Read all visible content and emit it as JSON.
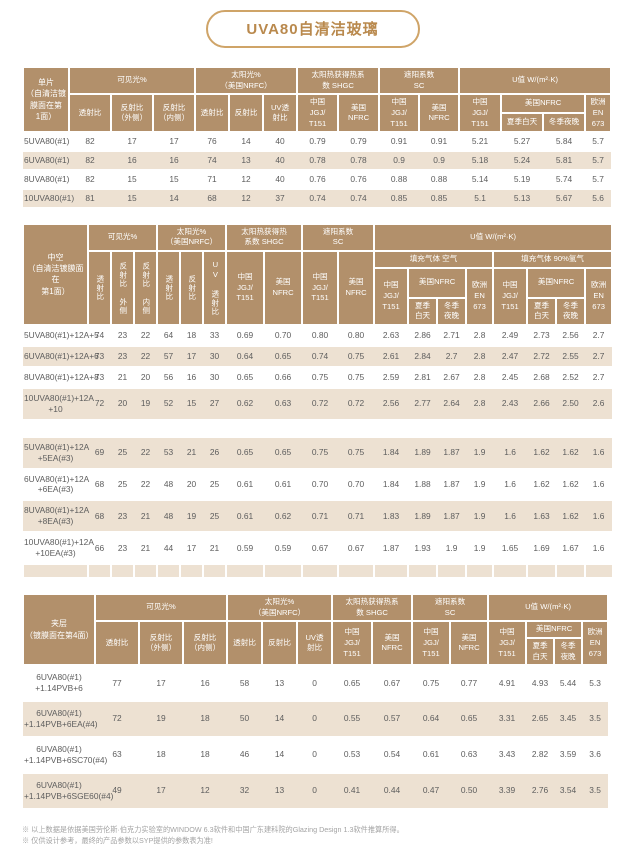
{
  "title": "UVA80自清洁玻璃",
  "colors": {
    "header_bg": "#b2906b",
    "row_alt_bg": "#ede1d2",
    "accent_gold": "#cfa468",
    "title_text": "#b9894d",
    "body_text": "#5d5d5d"
  },
  "labels": {
    "visible": "可见光%",
    "solar": "太阳光%\n（美国NRFC）",
    "shgc": "太阳热获得热系\n数 SHGC",
    "shgc2": "太阳热获得热\n系数 SHGC",
    "sc": "遮阳系数\nSC",
    "uvalue": "U值 W/(m²·K)",
    "trans": "透射比",
    "refl_out": "反射比\n（外侧）",
    "refl_in": "反射比\n（内侧）",
    "srefl": "反射比",
    "uv": "UV透\n射比",
    "trans_vert": "透射比",
    "refl_out_vert": "反射比 外侧",
    "refl_in_vert": "反射比 内侧",
    "srefl_vert": "反射比",
    "uv_vert": "UV 透射比",
    "cn": "中国\nJGJ/\nT151",
    "us": "美国\nNFRC",
    "us_nfrc": "美国NFRC",
    "eu": "欧洲\nEN\n673",
    "summer": "夏季白天",
    "winter": "冬季夜晚",
    "summer2": "夏季\n白天",
    "winter2": "冬季\n夜晚",
    "fill_air": "填充气体 空气",
    "fill_argon": "填充气体 90%氩气"
  },
  "table_mono": {
    "corner": "单片\n（自清洁镀\n膜面在第\n1面）",
    "rows": [
      {
        "label": "5UVA80(#1)",
        "values": [
          "82",
          "17",
          "17",
          "76",
          "14",
          "40",
          "0.79",
          "0.79",
          "0.91",
          "0.91",
          "5.21",
          "5.27",
          "5.84",
          "5.7"
        ]
      },
      {
        "label": "6UVA80(#1)",
        "values": [
          "82",
          "16",
          "16",
          "74",
          "13",
          "40",
          "0.78",
          "0.78",
          "0.9",
          "0.9",
          "5.18",
          "5.24",
          "5.81",
          "5.7"
        ]
      },
      {
        "label": "8UVA80(#1)",
        "values": [
          "82",
          "15",
          "15",
          "71",
          "12",
          "40",
          "0.76",
          "0.76",
          "0.88",
          "0.88",
          "5.14",
          "5.19",
          "5.74",
          "5.7"
        ]
      },
      {
        "label": "10UVA80(#1)",
        "values": [
          "81",
          "15",
          "14",
          "68",
          "12",
          "37",
          "0.74",
          "0.74",
          "0.85",
          "0.85",
          "5.1",
          "5.13",
          "5.67",
          "5.6"
        ]
      }
    ]
  },
  "table_igu": {
    "corner": "中空\n（自清洁镀膜面在\n第1面）",
    "rows_air": [
      {
        "label": "5UVA80(#1)+12A+5",
        "values": [
          "74",
          "23",
          "22",
          "64",
          "18",
          "33",
          "0.69",
          "0.70",
          "0.80",
          "0.80",
          "2.63",
          "2.86",
          "2.71",
          "2.8",
          "2.49",
          "2.73",
          "2.56",
          "2.7"
        ]
      },
      {
        "label": "6UVA80(#1)+12A+6",
        "values": [
          "73",
          "23",
          "22",
          "57",
          "17",
          "30",
          "0.64",
          "0.65",
          "0.74",
          "0.75",
          "2.61",
          "2.84",
          "2.7",
          "2.8",
          "2.47",
          "2.72",
          "2.55",
          "2.7"
        ]
      },
      {
        "label": "8UVA80(#1)+12A+8",
        "values": [
          "73",
          "21",
          "20",
          "56",
          "16",
          "30",
          "0.65",
          "0.66",
          "0.75",
          "0.75",
          "2.59",
          "2.81",
          "2.67",
          "2.8",
          "2.45",
          "2.68",
          "2.52",
          "2.7"
        ]
      },
      {
        "label": "10UVA80(#1)+12A\n+10",
        "values": [
          "72",
          "20",
          "19",
          "52",
          "15",
          "27",
          "0.62",
          "0.63",
          "0.72",
          "0.72",
          "2.56",
          "2.77",
          "2.64",
          "2.8",
          "2.43",
          "2.66",
          "2.50",
          "2.6"
        ]
      }
    ],
    "rows_ea": [
      {
        "label": "5UVA80(#1)+12A\n+5EA(#3)",
        "values": [
          "69",
          "25",
          "22",
          "53",
          "21",
          "26",
          "0.65",
          "0.65",
          "0.75",
          "0.75",
          "1.84",
          "1.89",
          "1.87",
          "1.9",
          "1.6",
          "1.62",
          "1.62",
          "1.6"
        ]
      },
      {
        "label": "6UVA80(#1)+12A\n+6EA(#3)",
        "values": [
          "68",
          "25",
          "22",
          "48",
          "20",
          "25",
          "0.61",
          "0.61",
          "0.70",
          "0.70",
          "1.84",
          "1.88",
          "1.87",
          "1.9",
          "1.6",
          "1.62",
          "1.62",
          "1.6"
        ]
      },
      {
        "label": "8UVA80(#1)+12A\n+8EA(#3)",
        "values": [
          "68",
          "23",
          "21",
          "48",
          "19",
          "25",
          "0.61",
          "0.62",
          "0.71",
          "0.71",
          "1.83",
          "1.89",
          "1.87",
          "1.9",
          "1.6",
          "1.63",
          "1.62",
          "1.6"
        ]
      },
      {
        "label": "10UVA80(#1)+12A\n+10EA(#3)",
        "values": [
          "66",
          "23",
          "21",
          "44",
          "17",
          "21",
          "0.59",
          "0.59",
          "0.67",
          "0.67",
          "1.87",
          "1.93",
          "1.9",
          "1.9",
          "1.65",
          "1.69",
          "1.67",
          "1.6"
        ]
      }
    ]
  },
  "table_lami": {
    "corner": "夹层\n（镀膜面在第4面）",
    "rows": [
      {
        "label": "6UVA80(#1)\n+1.14PVB+6",
        "values": [
          "77",
          "17",
          "16",
          "58",
          "13",
          "0",
          "0.65",
          "0.67",
          "0.75",
          "0.77",
          "4.91",
          "4.93",
          "5.44",
          "5.3"
        ]
      },
      {
        "label": "6UVA80(#1)\n+1.14PVB+6EA(#4)",
        "values": [
          "72",
          "19",
          "18",
          "50",
          "14",
          "0",
          "0.55",
          "0.57",
          "0.64",
          "0.65",
          "3.31",
          "2.65",
          "3.45",
          "3.5"
        ]
      },
      {
        "label": "6UVA80(#1)\n+1.14PVB+6SC70(#4)",
        "values": [
          "63",
          "18",
          "18",
          "46",
          "14",
          "0",
          "0.53",
          "0.54",
          "0.61",
          "0.63",
          "3.43",
          "2.82",
          "3.59",
          "3.6"
        ]
      },
      {
        "label": "6UVA80(#1)\n+1.14PVB+6SGE60(#4)",
        "values": [
          "49",
          "17",
          "12",
          "32",
          "13",
          "0",
          "0.41",
          "0.44",
          "0.47",
          "0.50",
          "3.39",
          "2.76",
          "3.54",
          "3.5"
        ]
      }
    ]
  },
  "notes": [
    "※ 以上数据是依据美国劳伦斯·伯克力实验室的WINDOW 6.3软件和中国广东建科院的Glazing Design 1.3软件推算所得。",
    "※ 仅供设计参考，最终的产品参数以SYP提供的参数表为准!"
  ]
}
